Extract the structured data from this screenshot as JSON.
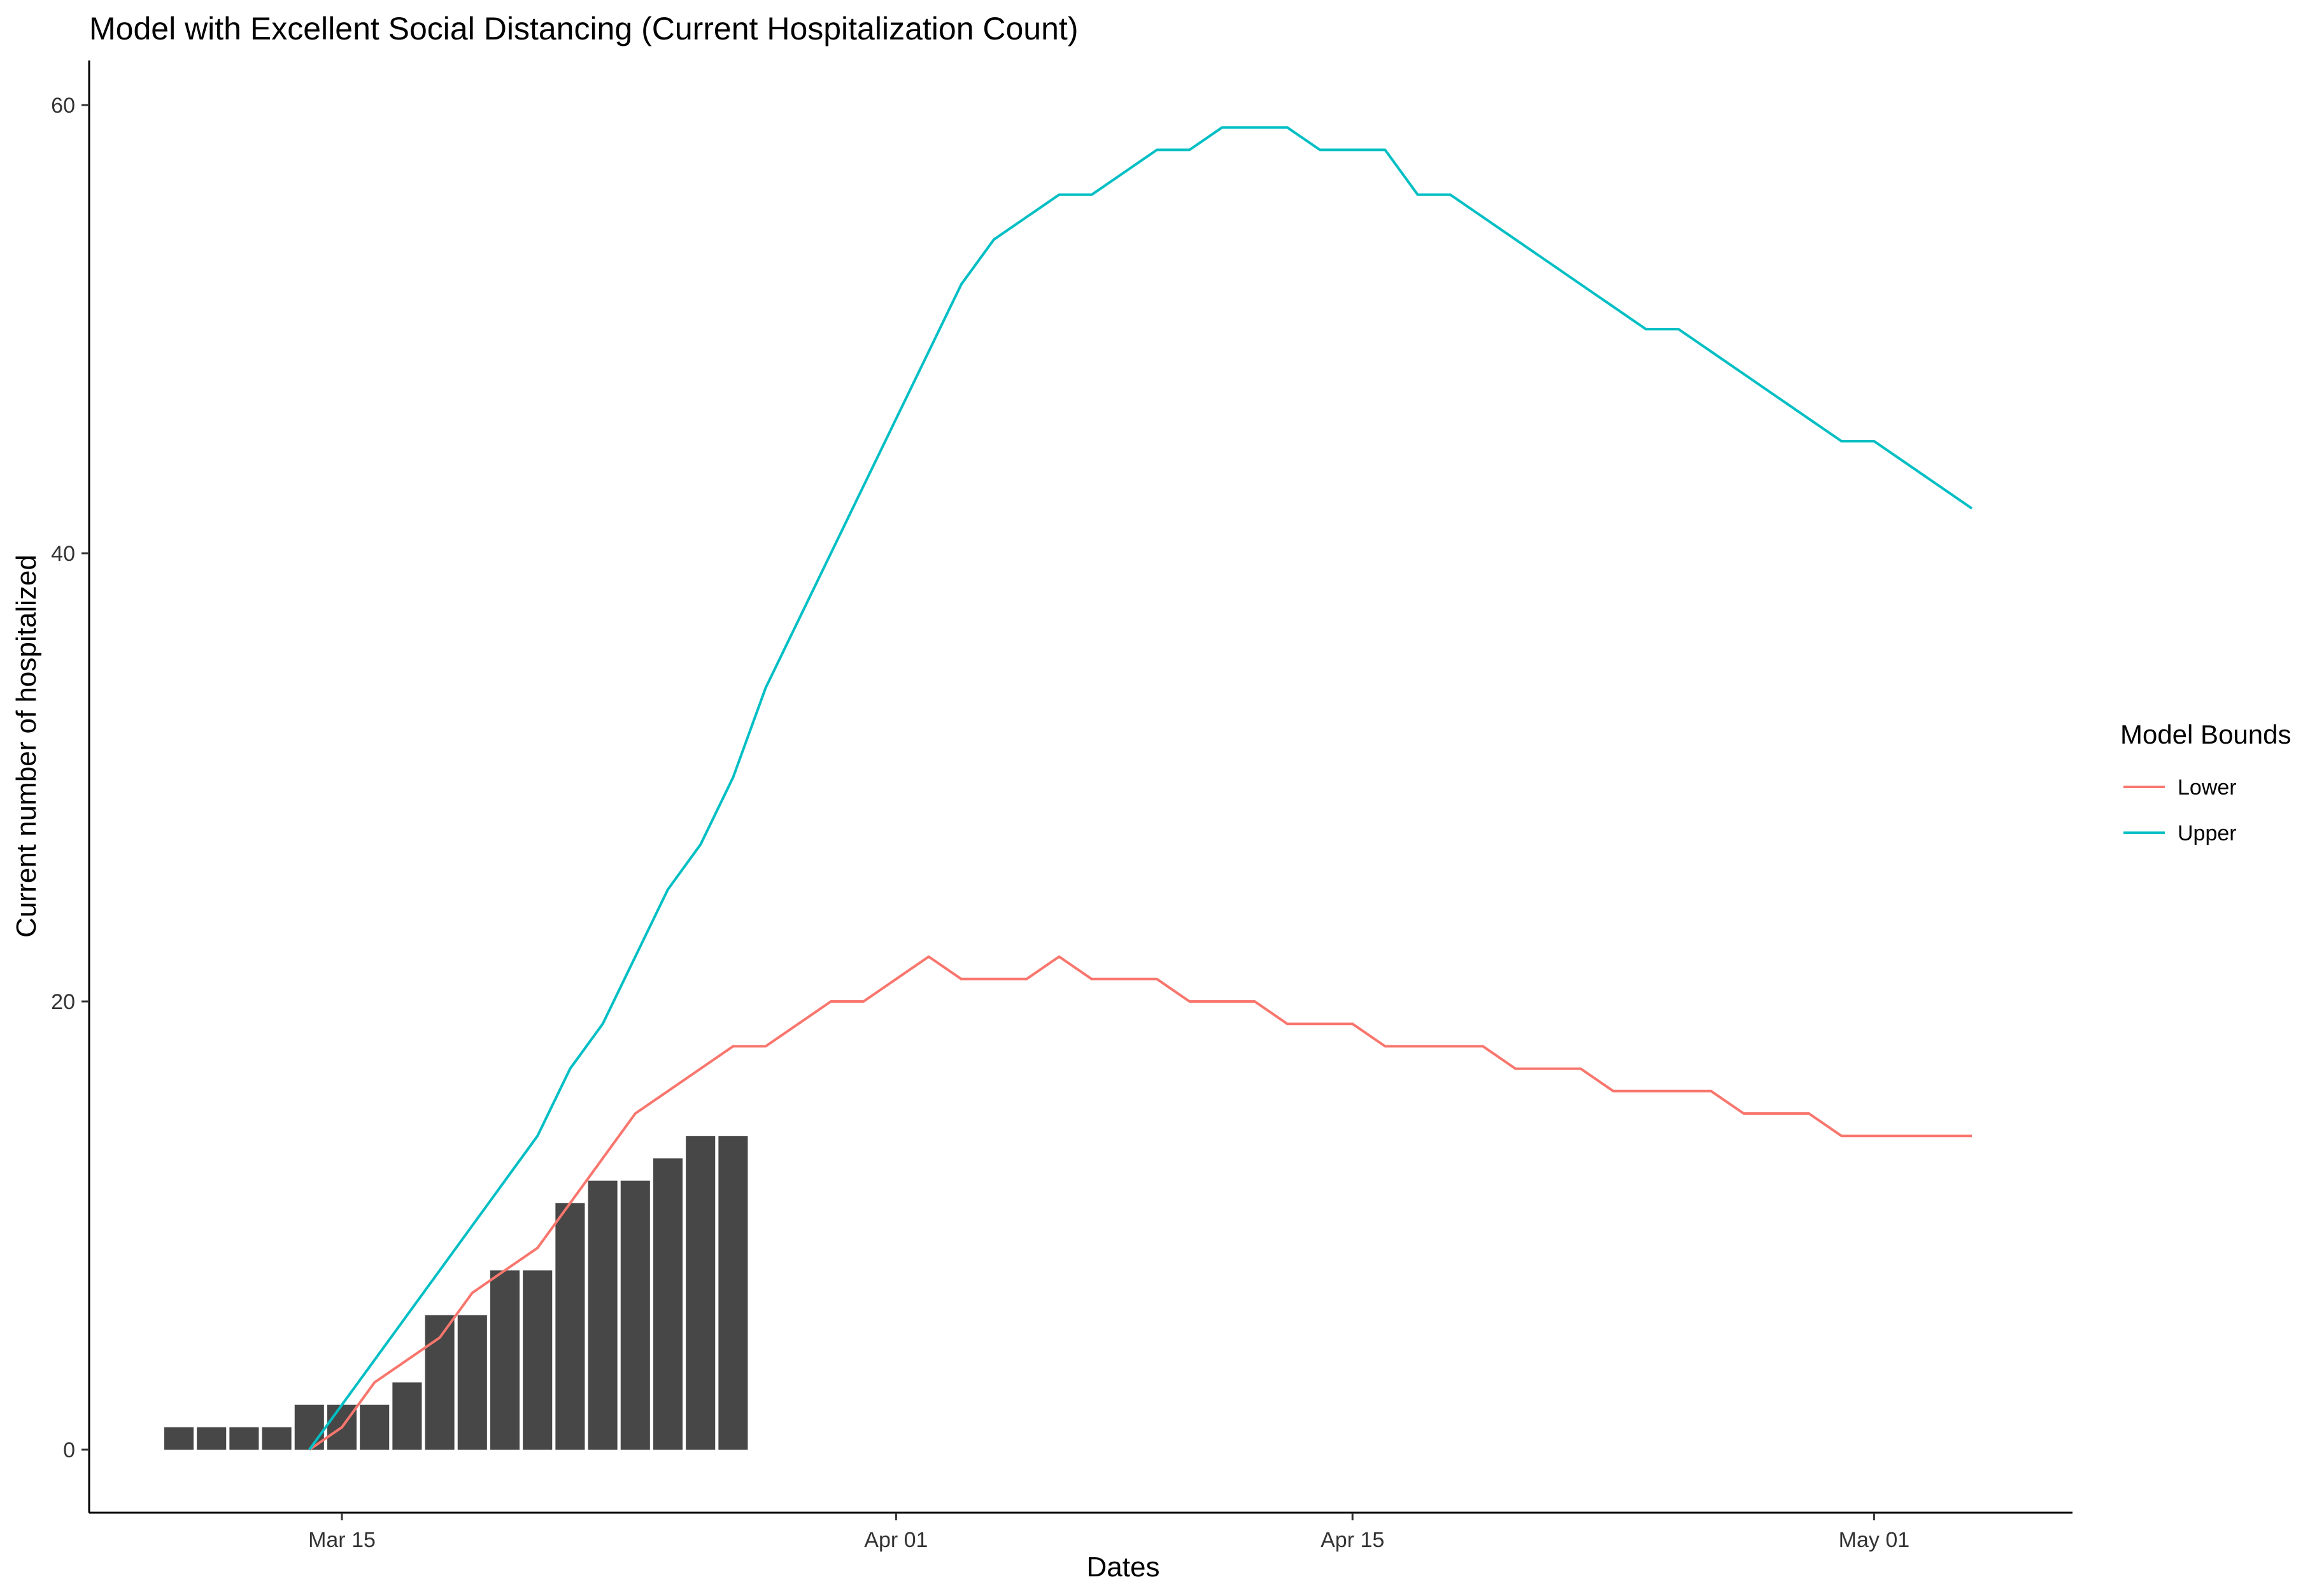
{
  "chart_data": {
    "type": "bar+line",
    "title": "Model with Excellent Social Distancing (Current Hospitalization Count)",
    "xlabel": "Dates",
    "ylabel": "Current number of hospitalized",
    "x_start": "2020-03-10",
    "xlim": [
      "2020-03-06",
      "2020-05-07"
    ],
    "ylim": [
      -2.8,
      62
    ],
    "x_ticks": [
      {
        "label": "Mar 15",
        "date": "2020-03-15"
      },
      {
        "label": "Apr 01",
        "date": "2020-04-01"
      },
      {
        "label": "Apr 15",
        "date": "2020-04-15"
      },
      {
        "label": "May 01",
        "date": "2020-05-01"
      }
    ],
    "y_ticks": [
      0,
      20,
      40,
      60
    ],
    "bar_color": "#474747",
    "bars": {
      "x": [
        "2020-03-10",
        "2020-03-11",
        "2020-03-12",
        "2020-03-13",
        "2020-03-14",
        "2020-03-15",
        "2020-03-16",
        "2020-03-17",
        "2020-03-18",
        "2020-03-19",
        "2020-03-20",
        "2020-03-21",
        "2020-03-22",
        "2020-03-23",
        "2020-03-24",
        "2020-03-25",
        "2020-03-26",
        "2020-03-27"
      ],
      "values": [
        1,
        1,
        1,
        1,
        2,
        2,
        2,
        3,
        6,
        6,
        8,
        8,
        11,
        12,
        12,
        13,
        14,
        14
      ]
    },
    "legend": {
      "title": "Model Bounds",
      "position": "right"
    },
    "series": [
      {
        "name": "Lower",
        "color": "#F8766D",
        "x_start": "2020-03-14",
        "values": [
          0,
          1,
          3,
          4,
          5,
          7,
          8,
          9,
          11,
          13,
          15,
          16,
          17,
          18,
          18,
          19,
          20,
          20,
          21,
          22,
          21,
          21,
          21,
          22,
          21,
          21,
          21,
          20,
          20,
          20,
          19,
          19,
          19,
          18,
          18,
          18,
          18,
          17,
          17,
          17,
          16,
          16,
          16,
          16,
          15,
          15,
          15,
          14,
          14,
          14,
          14,
          14
        ]
      },
      {
        "name": "Upper",
        "color": "#00BFC4",
        "x_start": "2020-03-14",
        "values": [
          0,
          2,
          4,
          6,
          8,
          10,
          12,
          14,
          17,
          19,
          22,
          25,
          27,
          30,
          34,
          37,
          40,
          43,
          46,
          49,
          52,
          54,
          55,
          56,
          56,
          57,
          58,
          58,
          59,
          59,
          59,
          58,
          58,
          58,
          56,
          56,
          55,
          54,
          53,
          52,
          51,
          50,
          50,
          49,
          48,
          47,
          46,
          45,
          45,
          44,
          43,
          42
        ]
      }
    ]
  }
}
